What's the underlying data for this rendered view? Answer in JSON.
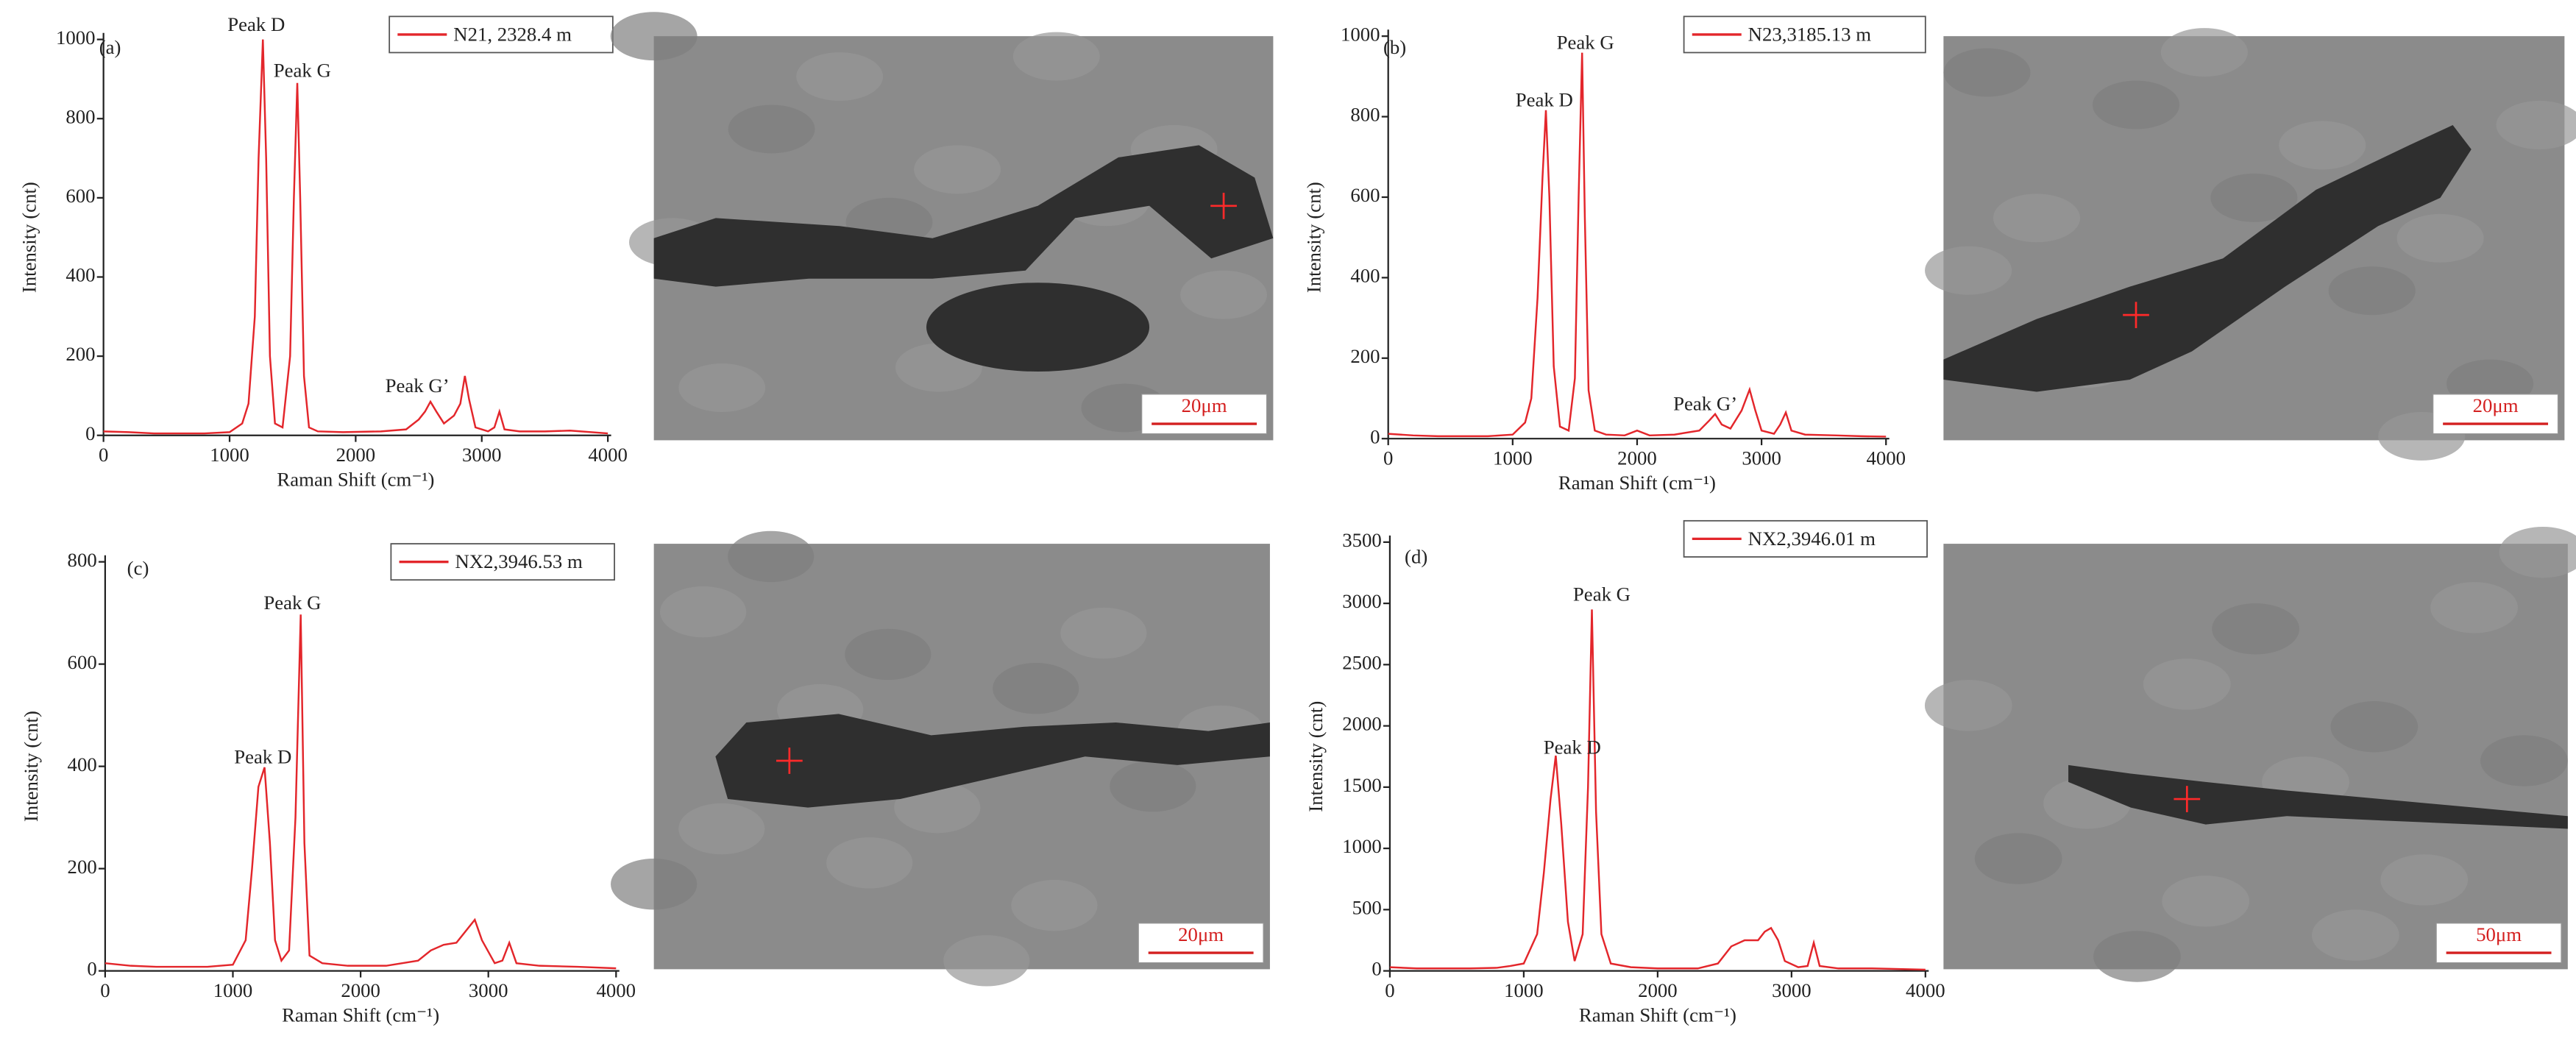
{
  "chart_data": [
    {
      "type": "line",
      "panel_label": "(a)",
      "xlabel": "Raman Shift (cm⁻¹)",
      "ylabel": "Intensity (cnt)",
      "xlim": [
        0,
        4000
      ],
      "ylim": [
        0,
        1000
      ],
      "xticks": [
        0,
        1000,
        2000,
        3000,
        4000
      ],
      "yticks": [
        0,
        200,
        400,
        600,
        800,
        1000
      ],
      "annotations": [
        "Peak D",
        "Peak G",
        "Peak G’"
      ],
      "x": [
        0,
        200,
        400,
        600,
        800,
        1000,
        1100,
        1150,
        1200,
        1230,
        1264,
        1290,
        1320,
        1360,
        1420,
        1480,
        1510,
        1537,
        1560,
        1590,
        1630,
        1700,
        1900,
        2200,
        2400,
        2500,
        2550,
        2593,
        2640,
        2700,
        2780,
        2830,
        2866,
        2900,
        2950,
        3050,
        3100,
        3140,
        3180,
        3300,
        3500,
        3700,
        4000
      ],
      "series": [
        {
          "name": "N21, 2328.4 m",
          "color": "#e3262b",
          "values": [
            10,
            8,
            5,
            5,
            5,
            8,
            30,
            80,
            300,
            700,
            1000,
            700,
            200,
            30,
            20,
            200,
            600,
            890,
            600,
            150,
            20,
            10,
            8,
            10,
            15,
            40,
            60,
            85,
            60,
            30,
            50,
            80,
            150,
            90,
            20,
            10,
            20,
            60,
            15,
            10,
            10,
            12,
            5
          ]
        }
      ]
    },
    {
      "type": "line",
      "panel_label": "(b)",
      "xlabel": "Raman Shift (cm⁻¹)",
      "ylabel": "Intensity (cnt)",
      "xlim": [
        0,
        4000
      ],
      "ylim": [
        0,
        1000
      ],
      "xticks": [
        0,
        1000,
        2000,
        3000,
        4000
      ],
      "yticks": [
        0,
        200,
        400,
        600,
        800,
        1000
      ],
      "annotations": [
        "Peak D",
        "Peak G",
        "Peak G’"
      ],
      "x": [
        0,
        200,
        400,
        600,
        800,
        1000,
        1100,
        1150,
        1200,
        1240,
        1267,
        1295,
        1330,
        1380,
        1450,
        1500,
        1530,
        1558,
        1580,
        1610,
        1660,
        1750,
        1900,
        2000,
        2100,
        2300,
        2500,
        2580,
        2627,
        2680,
        2750,
        2840,
        2904,
        2950,
        3000,
        3100,
        3150,
        3195,
        3240,
        3350,
        3600,
        3800,
        4000
      ],
      "series": [
        {
          "name": "N23,3185.13 m",
          "color": "#e3262b",
          "values": [
            12,
            8,
            6,
            6,
            6,
            10,
            40,
            100,
            350,
            650,
            816,
            600,
            180,
            30,
            20,
            150,
            600,
            959,
            550,
            120,
            20,
            10,
            8,
            20,
            8,
            10,
            20,
            45,
            61,
            35,
            25,
            70,
            122,
            70,
            20,
            12,
            35,
            65,
            20,
            10,
            8,
            6,
            5
          ]
        }
      ]
    },
    {
      "type": "line",
      "panel_label": "(c)",
      "xlabel": "Raman Shift (cm⁻¹)",
      "ylabel": "Intensity (cnt)",
      "xlim": [
        0,
        4000
      ],
      "ylim": [
        0,
        800
      ],
      "xticks": [
        0,
        1000,
        2000,
        3000,
        4000
      ],
      "yticks": [
        0,
        200,
        400,
        600,
        800
      ],
      "annotations": [
        "Peak D",
        "Peak G"
      ],
      "x": [
        0,
        200,
        400,
        600,
        800,
        1000,
        1100,
        1150,
        1200,
        1248,
        1290,
        1330,
        1380,
        1440,
        1490,
        1531,
        1560,
        1600,
        1700,
        1900,
        2200,
        2450,
        2550,
        2650,
        2750,
        2830,
        2894,
        2950,
        3050,
        3110,
        3164,
        3220,
        3400,
        3700,
        4000
      ],
      "series": [
        {
          "name": "NX2,3946.53 m",
          "color": "#e3262b",
          "values": [
            15,
            10,
            8,
            8,
            8,
            12,
            60,
            200,
            360,
            398,
            250,
            60,
            20,
            40,
            300,
            697,
            250,
            30,
            15,
            10,
            10,
            20,
            40,
            51,
            55,
            80,
            100,
            60,
            15,
            20,
            55,
            15,
            10,
            8,
            5
          ]
        }
      ]
    },
    {
      "type": "line",
      "panel_label": "(d)",
      "xlabel": "Raman Shift (cm⁻¹)",
      "ylabel": "Intensity (cnt)",
      "xlim": [
        0,
        4000
      ],
      "ylim": [
        0,
        3500
      ],
      "xticks": [
        0,
        1000,
        2000,
        3000,
        4000
      ],
      "yticks": [
        0,
        500,
        1000,
        1500,
        2000,
        2500,
        3000,
        3500
      ],
      "annotations": [
        "Peak D",
        "Peak G"
      ],
      "x": [
        0,
        200,
        400,
        600,
        800,
        900,
        1000,
        1100,
        1150,
        1200,
        1239,
        1280,
        1330,
        1380,
        1440,
        1480,
        1509,
        1540,
        1580,
        1650,
        1800,
        2000,
        2300,
        2450,
        2550,
        2650,
        2750,
        2800,
        2847,
        2900,
        2950,
        3050,
        3120,
        3166,
        3210,
        3350,
        3600,
        4000
      ],
      "series": [
        {
          "name": "NX2,3946.01 m",
          "color": "#e3262b",
          "values": [
            30,
            20,
            20,
            20,
            25,
            40,
            60,
            300,
            800,
            1400,
            1757,
            1200,
            400,
            80,
            300,
            1500,
            2950,
            1300,
            300,
            60,
            30,
            20,
            20,
            60,
            200,
            250,
            250,
            320,
            350,
            250,
            80,
            30,
            40,
            230,
            40,
            20,
            20,
            10
          ]
        }
      ]
    }
  ],
  "images": [
    {
      "scale_bar": "20μm"
    },
    {
      "scale_bar": "20μm"
    },
    {
      "scale_bar": "20μm"
    },
    {
      "scale_bar": "50μm"
    }
  ]
}
